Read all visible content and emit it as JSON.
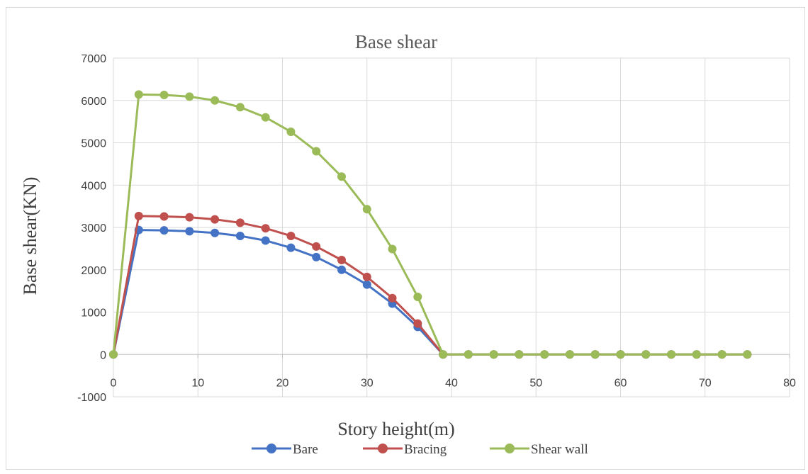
{
  "chart_data": {
    "type": "line",
    "title": "Base shear",
    "xlabel": "Story height(m)",
    "ylabel": "Base shear(KN)",
    "xlim": [
      0,
      80
    ],
    "ylim": [
      -1000,
      7000
    ],
    "x_ticks": [
      0,
      10,
      20,
      30,
      40,
      50,
      60,
      70,
      80
    ],
    "y_ticks": [
      -1000,
      0,
      1000,
      2000,
      3000,
      4000,
      5000,
      6000,
      7000
    ],
    "grid": true,
    "legend_position": "bottom",
    "x": [
      0,
      3,
      6,
      9,
      12,
      15,
      18,
      21,
      24,
      27,
      30,
      33,
      36,
      39,
      42,
      45,
      48,
      51,
      54,
      57,
      60,
      63,
      66,
      69,
      72,
      75
    ],
    "series": [
      {
        "name": "Bare",
        "color": "#4472c4",
        "values": [
          0,
          2940,
          2930,
          2910,
          2870,
          2800,
          2690,
          2520,
          2300,
          2000,
          1650,
          1200,
          650,
          0,
          0,
          0,
          0,
          0,
          0,
          0,
          0,
          0,
          0,
          0,
          0,
          0
        ]
      },
      {
        "name": "Bracing",
        "color": "#c0504d",
        "values": [
          0,
          3270,
          3260,
          3240,
          3190,
          3110,
          2980,
          2800,
          2550,
          2230,
          1830,
          1330,
          730,
          0,
          0,
          0,
          0,
          0,
          0,
          0,
          0,
          0,
          0,
          0,
          0,
          0
        ]
      },
      {
        "name": "Shear wall",
        "color": "#9bbb59",
        "values": [
          0,
          6140,
          6130,
          6090,
          6000,
          5840,
          5600,
          5260,
          4800,
          4200,
          3430,
          2490,
          1360,
          0,
          0,
          0,
          0,
          0,
          0,
          0,
          0,
          0,
          0,
          0,
          0,
          0
        ]
      }
    ]
  }
}
